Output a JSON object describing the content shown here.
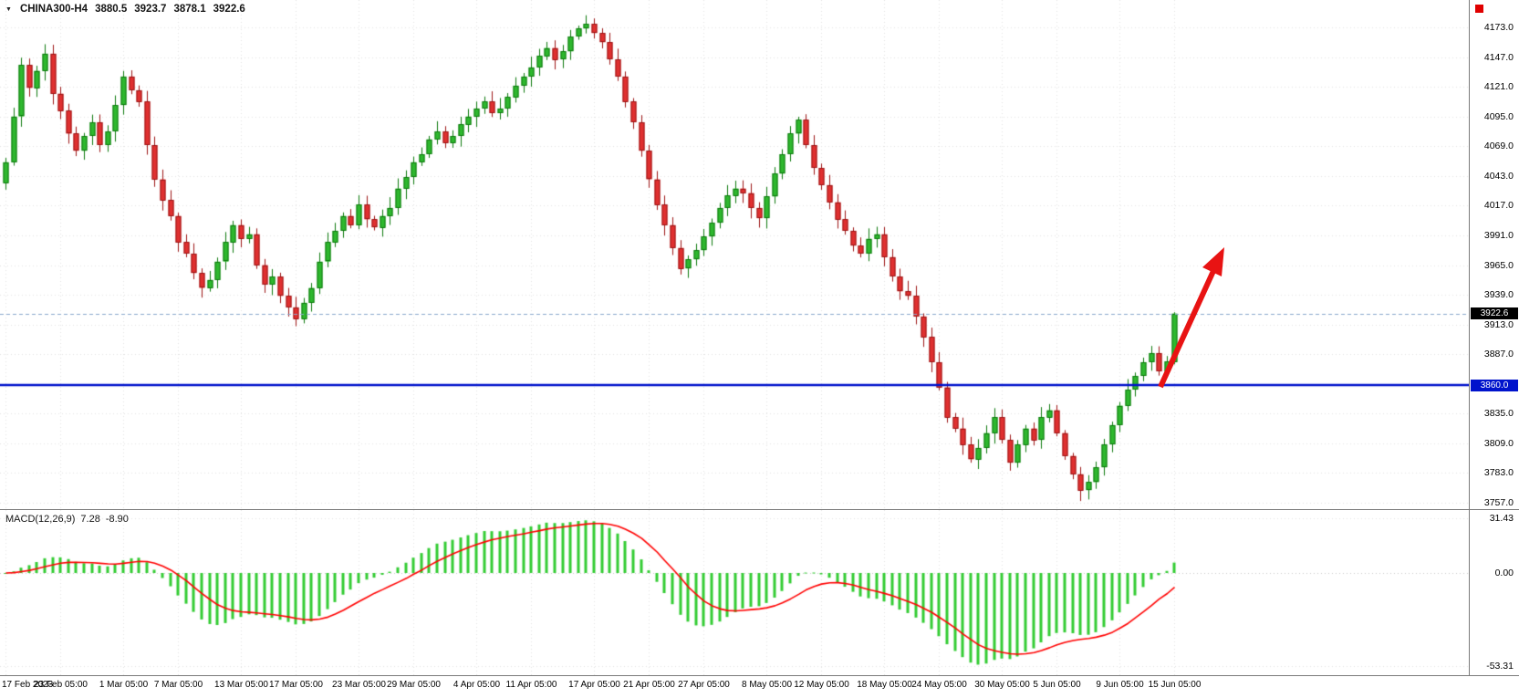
{
  "header": {
    "symbol": "CHINA300-H4",
    "open": "3880.5",
    "high": "3923.7",
    "low": "3878.1",
    "close": "3922.6"
  },
  "price_axis": {
    "ticks": [
      "4173.0",
      "4147.0",
      "4121.0",
      "4095.0",
      "4069.0",
      "4043.0",
      "4017.0",
      "3991.0",
      "3965.0",
      "3939.0",
      "3913.0",
      "3887.0",
      "3835.0",
      "3809.0",
      "3783.0",
      "3757.0"
    ],
    "current_price_label": "3922.6",
    "hline_label": "3860.0"
  },
  "macd_panel": {
    "name": "MACD(12,26,9)",
    "macd_value": "7.28",
    "signal_value": "-8.90",
    "axis": [
      "31.43",
      "0.00",
      "-53.31"
    ]
  },
  "time_axis": {
    "labels": [
      "17 Feb 2023",
      "23 Feb 05:00",
      "1 Mar 05:00",
      "7 Mar 05:00",
      "13 Mar 05:00",
      "17 Mar 05:00",
      "23 Mar 05:00",
      "29 Mar 05:00",
      "4 Apr 05:00",
      "11 Apr 05:00",
      "17 Apr 05:00",
      "21 Apr 05:00",
      "27 Apr 05:00",
      "8 May 05:00",
      "12 May 05:00",
      "18 May 05:00",
      "24 May 05:00",
      "30 May 05:00",
      "5 Jun 05:00",
      "9 Jun 05:00",
      "15 Jun 05:00"
    ]
  },
  "chart_data": {
    "type": "candlestick",
    "symbol": "CHINA300",
    "timeframe": "H4",
    "title": "CHINA300-H4",
    "last_bar_ohlc": [
      3880.5,
      3923.7,
      3878.1,
      3922.6
    ],
    "price_axis_range": [
      3757.0,
      4173.0
    ],
    "price_tick_step": 26.0,
    "hline": 3860.0,
    "current_price": 3922.6,
    "extreme_high": 4180.5,
    "extreme_low": 3758.5,
    "closes": [
      4055,
      4095,
      4140,
      4120,
      4135,
      4150,
      4115,
      4100,
      4080,
      4065,
      4078,
      4090,
      4070,
      4082,
      4105,
      4130,
      4118,
      4108,
      4070,
      4040,
      4022,
      4008,
      3985,
      3975,
      3958,
      3945,
      3952,
      3968,
      3985,
      4000,
      3988,
      3992,
      3965,
      3948,
      3955,
      3938,
      3928,
      3918,
      3932,
      3945,
      3968,
      3985,
      3995,
      4008,
      4000,
      4018,
      4005,
      3998,
      4008,
      4015,
      4032,
      4042,
      4055,
      4062,
      4075,
      4082,
      4072,
      4078,
      4088,
      4095,
      4102,
      4108,
      4098,
      4102,
      4112,
      4122,
      4130,
      4138,
      4148,
      4155,
      4145,
      4152,
      4165,
      4172,
      4176,
      4168,
      4160,
      4145,
      4130,
      4108,
      4090,
      4065,
      4040,
      4018,
      4000,
      3980,
      3962,
      3970,
      3978,
      3990,
      4002,
      4015,
      4026,
      4032,
      4028,
      4015,
      4006,
      4025,
      4045,
      4062,
      4080,
      4092,
      4070,
      4050,
      4035,
      4020,
      4005,
      3995,
      3982,
      3975,
      3988,
      3992,
      3972,
      3955,
      3942,
      3938,
      3920,
      3902,
      3880,
      3858,
      3832,
      3822,
      3808,
      3795,
      3805,
      3818,
      3832,
      3812,
      3792,
      3808,
      3822,
      3812,
      3832,
      3838,
      3818,
      3798,
      3782,
      3768,
      3775,
      3788,
      3808,
      3825,
      3842,
      3856,
      3868,
      3880,
      3888,
      3872,
      3880.5,
      3922.6
    ],
    "macd": {
      "type": "histogram+signal",
      "params": [
        12,
        26,
        9
      ],
      "macd_value": 7.28,
      "signal_value": -8.9,
      "axis_range": [
        -53.31,
        31.43
      ]
    },
    "annotations": {
      "support_line_price": 3860.0,
      "arrow": {
        "direction": "up-right",
        "from_price": 3860,
        "to_price": 3978,
        "meaning": "bullish breakout projection"
      }
    }
  },
  "colors": {
    "up": "#2eb82e",
    "up_border": "#0d7a0d",
    "down": "#e03030",
    "down_border": "#9c1515",
    "macd_hist": "#33cc33",
    "macd_signal": "#ff0000",
    "hline": "#0013cc",
    "price_line": "#8aa8cc",
    "arrow": "#e81313",
    "grid": "#e3e3e3",
    "red_square": "#e00000"
  }
}
